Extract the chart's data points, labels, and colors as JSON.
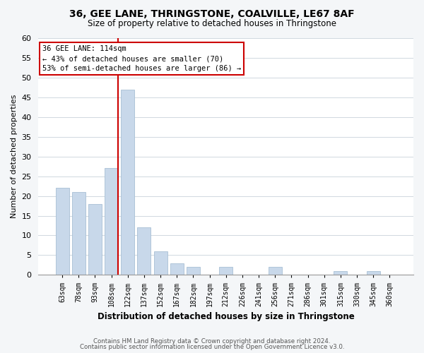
{
  "title": "36, GEE LANE, THRINGSTONE, COALVILLE, LE67 8AF",
  "subtitle": "Size of property relative to detached houses in Thringstone",
  "xlabel": "Distribution of detached houses by size in Thringstone",
  "ylabel": "Number of detached properties",
  "bin_labels": [
    "63sqm",
    "78sqm",
    "93sqm",
    "108sqm",
    "122sqm",
    "137sqm",
    "152sqm",
    "167sqm",
    "182sqm",
    "197sqm",
    "212sqm",
    "226sqm",
    "241sqm",
    "256sqm",
    "271sqm",
    "286sqm",
    "301sqm",
    "315sqm",
    "330sqm",
    "345sqm",
    "360sqm"
  ],
  "bar_values": [
    22,
    21,
    18,
    27,
    47,
    12,
    6,
    3,
    2,
    0,
    2,
    0,
    0,
    2,
    0,
    0,
    0,
    1,
    0,
    1,
    0
  ],
  "bar_color": "#c8d8ea",
  "bar_edge_color": "#a8bfd4",
  "annotation_line1": "36 GEE LANE: 114sqm",
  "annotation_line2": "← 43% of detached houses are smaller (70)",
  "annotation_line3": "53% of semi-detached houses are larger (86) →",
  "annotation_box_color": "#ffffff",
  "annotation_box_edge": "#cc0000",
  "vline_color": "#cc0000",
  "ylim": [
    0,
    60
  ],
  "yticks": [
    0,
    5,
    10,
    15,
    20,
    25,
    30,
    35,
    40,
    45,
    50,
    55,
    60
  ],
  "footer_line1": "Contains HM Land Registry data © Crown copyright and database right 2024.",
  "footer_line2": "Contains public sector information licensed under the Open Government Licence v3.0.",
  "bg_color": "#f4f6f8",
  "plot_bg_color": "#ffffff",
  "grid_color": "#d0d8e0"
}
